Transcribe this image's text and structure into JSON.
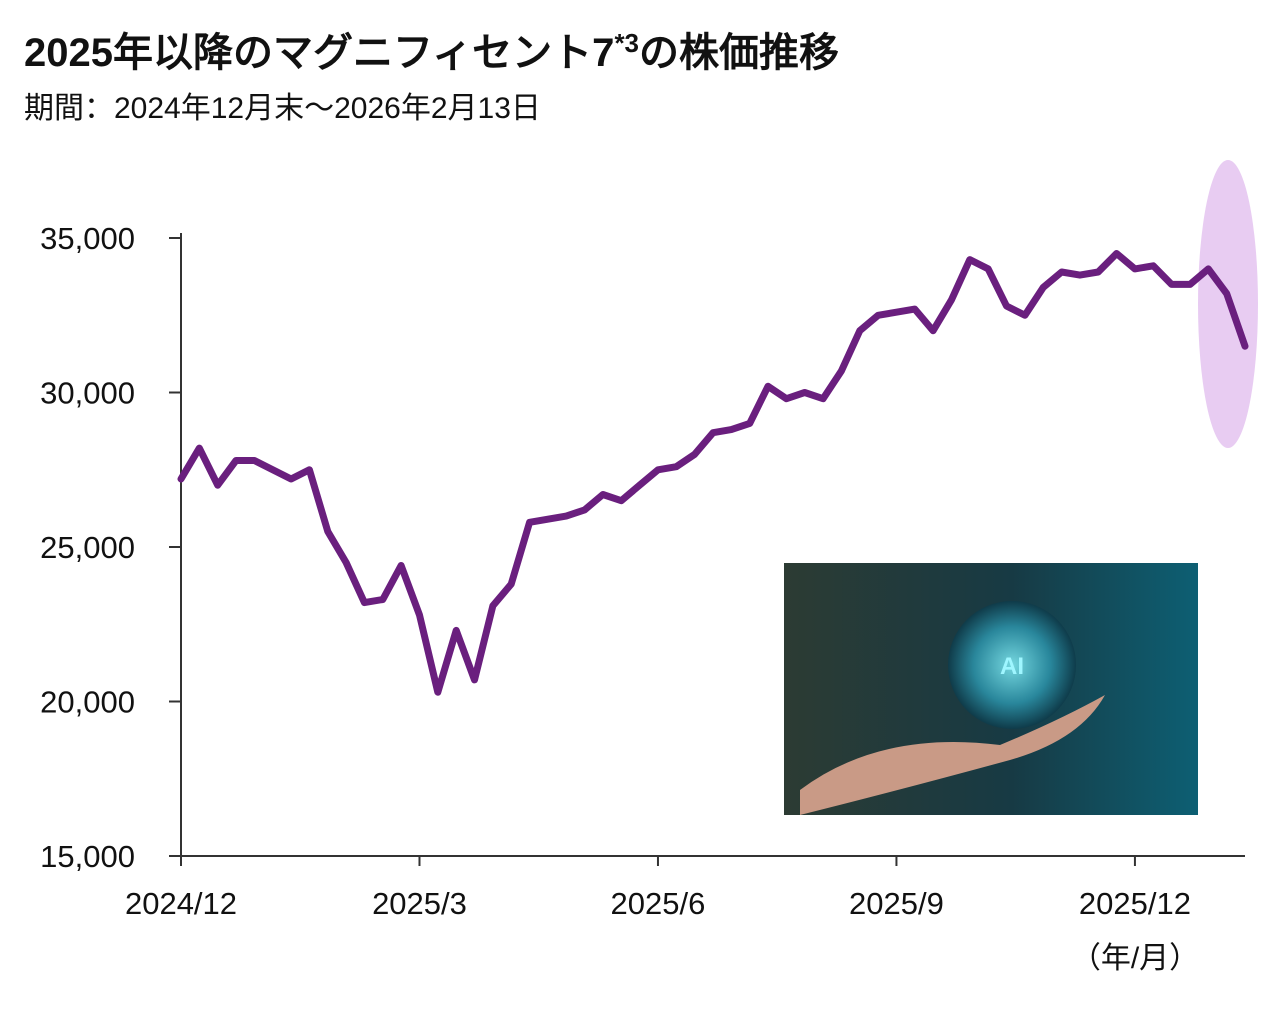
{
  "chart_data": {
    "type": "line",
    "title": "2025年以降のマグニフィセント7",
    "title_note": "*3",
    "title_suffix": "の株価推移",
    "subtitle": "期間：2024年12月末～2026年2月13日",
    "x_unit_label": "（年/月）",
    "inset_label": "AI",
    "categories": [
      "2024/12",
      null,
      null,
      null,
      null,
      null,
      null,
      null,
      null,
      null,
      null,
      null,
      null,
      "2025/3",
      null,
      null,
      null,
      null,
      null,
      null,
      null,
      null,
      null,
      null,
      null,
      null,
      "2025/6",
      null,
      null,
      null,
      null,
      null,
      null,
      null,
      null,
      null,
      null,
      null,
      null,
      "2025/9",
      null,
      null,
      null,
      null,
      null,
      null,
      null,
      null,
      null,
      null,
      null,
      null,
      "2025/12",
      null,
      null,
      null,
      null,
      null,
      null
    ],
    "series": [
      {
        "name": "マグニフィセント7",
        "color": "#6a1f7e",
        "values": [
          27200,
          28200,
          27000,
          27800,
          27800,
          27500,
          27200,
          27500,
          25500,
          24500,
          23200,
          23300,
          24400,
          22800,
          20300,
          22300,
          20700,
          23100,
          23800,
          25800,
          25900,
          26000,
          26200,
          26700,
          26500,
          27000,
          27500,
          27600,
          28000,
          28700,
          28800,
          29000,
          30200,
          29800,
          30000,
          29800,
          30700,
          32000,
          32500,
          32600,
          32700,
          32000,
          33000,
          34300,
          34000,
          32800,
          32500,
          33400,
          33900,
          33800,
          33900,
          34500,
          34000,
          34100,
          33500,
          33500,
          34000,
          33200,
          31500
        ]
      }
    ],
    "ylim": [
      15000,
      35000
    ],
    "yticks": [
      {
        "value": 15000,
        "label": "15,000"
      },
      {
        "value": 20000,
        "label": "20,000"
      },
      {
        "value": 25000,
        "label": "25,000"
      },
      {
        "value": 30000,
        "label": "30,000"
      },
      {
        "value": 35000,
        "label": "35,000"
      }
    ],
    "grid": false
  }
}
